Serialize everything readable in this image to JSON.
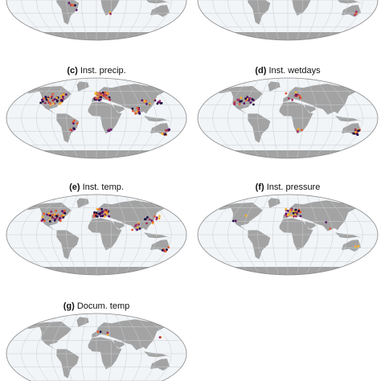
{
  "panels": [
    {
      "letter": "(c)",
      "text": "Inst. precip."
    },
    {
      "letter": "(d)",
      "text": "Inst. wetdays"
    },
    {
      "letter": "(e)",
      "text": "Inst. temp."
    },
    {
      "letter": "(f)",
      "text": "Inst. pressure"
    },
    {
      "letter": "(g)",
      "text": "Docum. temp"
    }
  ]
}
